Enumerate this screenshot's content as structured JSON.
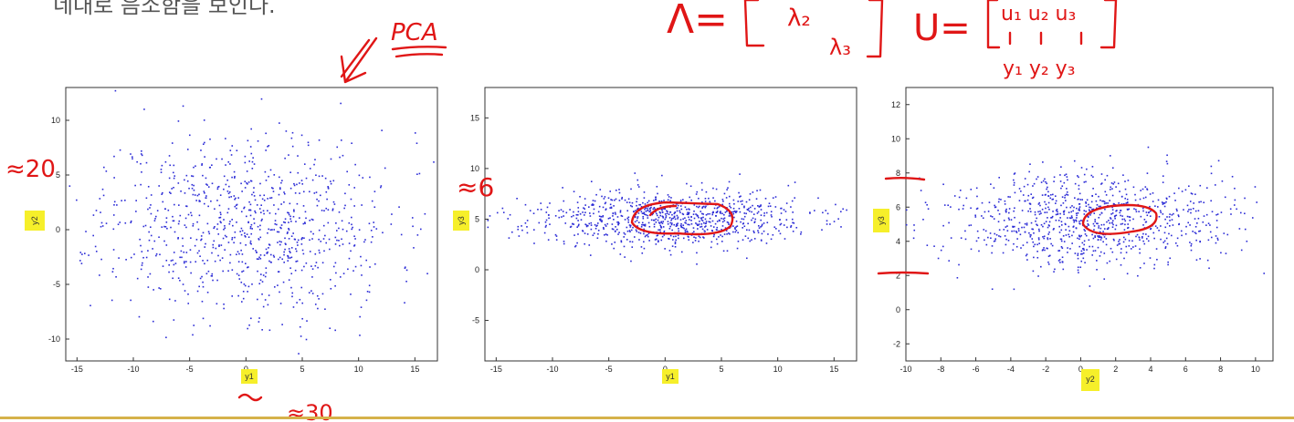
{
  "page_text": "네대로 음소함을 보인다.",
  "annotations": {
    "pca": "PCA",
    "approx_20": "≈20",
    "approx_6": "≈6",
    "approx_30": "≈30",
    "lambda_eq": "Λ=",
    "lambda2": "λ₂",
    "lambda3": "λ₃",
    "u_eq": "U=",
    "u_cols": "u₁ u₂ u₃",
    "y_cols": "y₁ y₂ y₃"
  },
  "colors": {
    "points": "#2b2bd6",
    "ink": "#e01616",
    "highlight": "#f6ef2a",
    "rule": "#d6b24a"
  },
  "chart_data": [
    {
      "type": "scatter",
      "xlabel": "y1",
      "ylabel": "y2",
      "xlim": [
        -16,
        17
      ],
      "ylim": [
        -12,
        13
      ],
      "xticks": [
        -15,
        -10,
        -5,
        0,
        5,
        10,
        15
      ],
      "yticks": [
        -10,
        -5,
        0,
        5,
        10
      ],
      "x_spread": 6.5,
      "y_spread": 4.2,
      "x_center": 0,
      "y_center": 0.5,
      "n_points": 900,
      "seed": 11
    },
    {
      "type": "scatter",
      "xlabel": "y1",
      "ylabel": "y3",
      "xlim": [
        -16,
        17
      ],
      "ylim": [
        -9,
        18
      ],
      "xticks": [
        -15,
        -10,
        -5,
        0,
        5,
        10,
        15
      ],
      "yticks": [
        -5,
        0,
        5,
        10,
        15
      ],
      "x_spread": 6.2,
      "y_spread": 1.4,
      "x_center": 0,
      "y_center": 5,
      "n_points": 900,
      "seed": 23
    },
    {
      "type": "scatter",
      "xlabel": "y2",
      "ylabel": "y3",
      "xlim": [
        -10,
        11
      ],
      "ylim": [
        -3,
        13
      ],
      "xticks": [
        -10,
        -8,
        -6,
        -4,
        -2,
        0,
        2,
        4,
        6,
        8,
        10
      ],
      "yticks": [
        -2,
        0,
        2,
        4,
        6,
        8,
        10,
        12
      ],
      "x_spread": 3.9,
      "y_spread": 1.4,
      "x_center": 0.5,
      "y_center": 5.3,
      "n_points": 900,
      "seed": 37
    }
  ]
}
